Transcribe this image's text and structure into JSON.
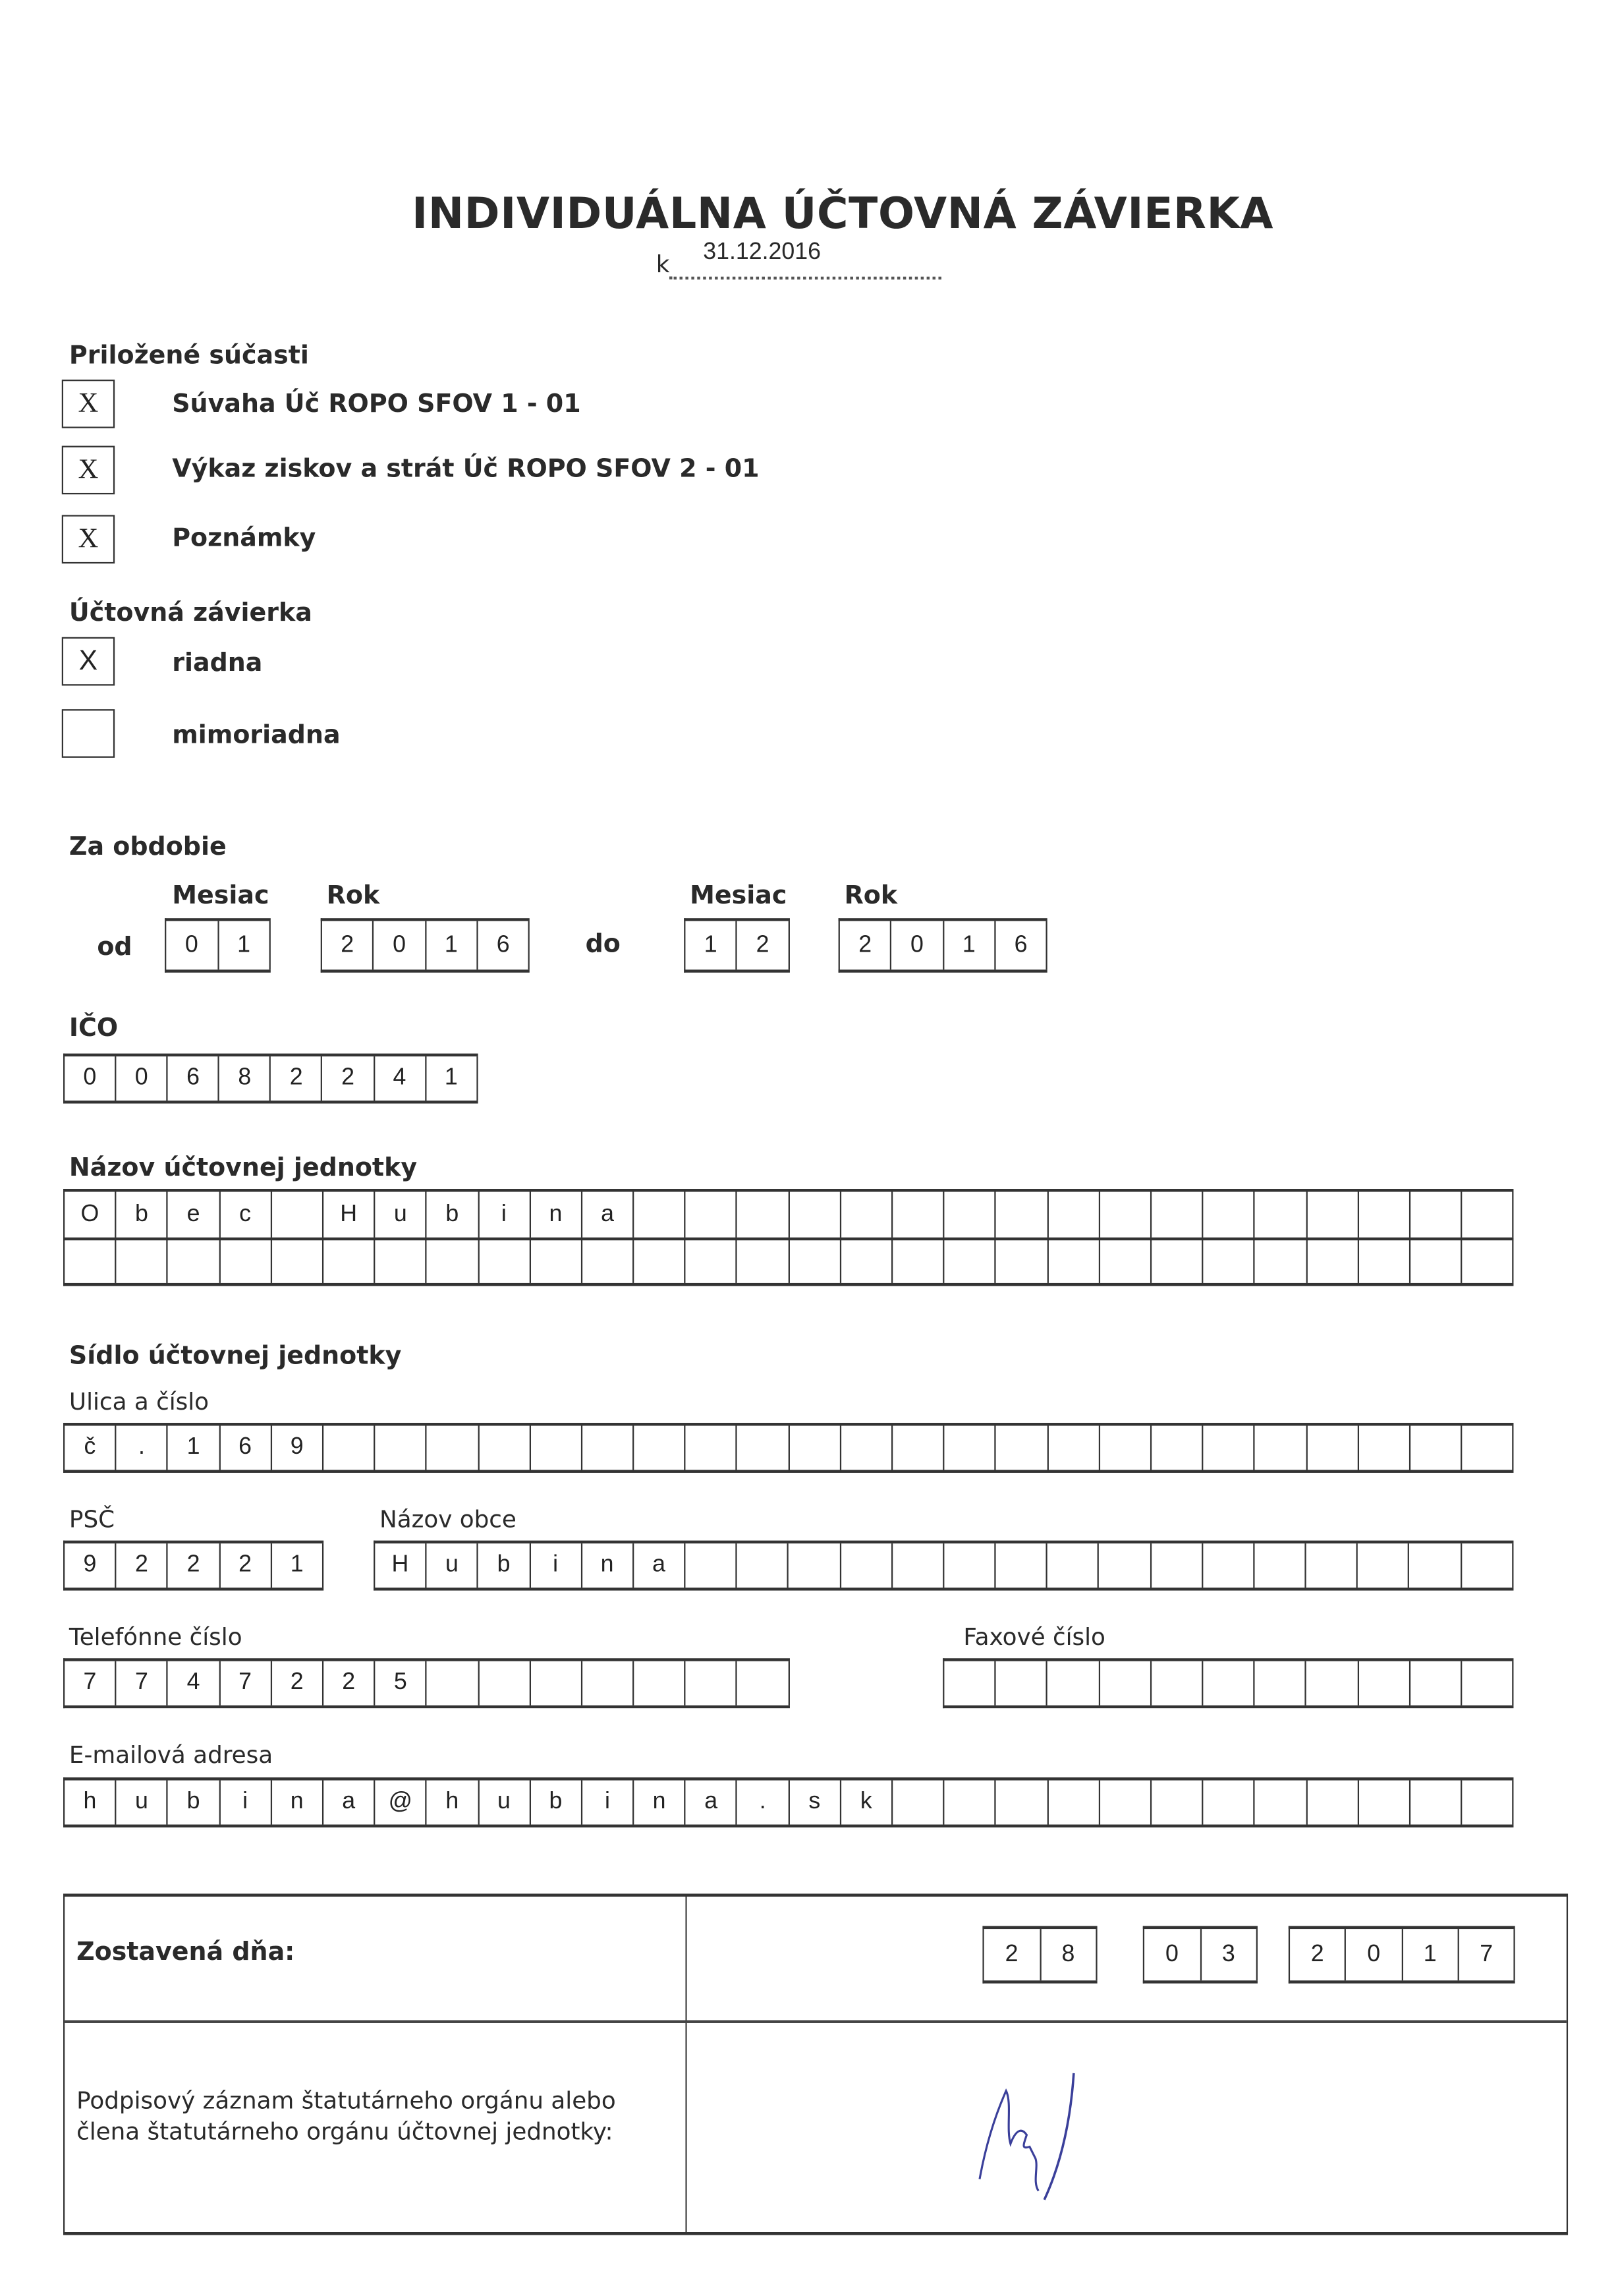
{
  "title": "INDIVIDUÁLNA ÚČTOVNÁ ZÁVIERKA",
  "as_of_prefix": "k",
  "as_of_date": "31.12.2016",
  "attached": {
    "heading": "Priložené súčasti",
    "items": [
      {
        "label": "Súvaha Úč ROPO SFOV 1 - 01",
        "mark": "X"
      },
      {
        "label": "Výkaz ziskov a strát Úč ROPO SFOV 2 - 01",
        "mark": "X"
      },
      {
        "label": "Poznámky",
        "mark": "X"
      }
    ]
  },
  "statement_type": {
    "heading": "Účtovná závierka",
    "items": [
      {
        "label": "riadna",
        "mark": "X"
      },
      {
        "label": "mimoriadna",
        "mark": ""
      }
    ]
  },
  "period": {
    "heading": "Za obdobie",
    "month_label": "Mesiac",
    "year_label": "Rok",
    "from_label": "od",
    "to_label": "do",
    "from_month": [
      "0",
      "1"
    ],
    "from_year": [
      "2",
      "0",
      "1",
      "6"
    ],
    "to_month": [
      "1",
      "2"
    ],
    "to_year": [
      "2",
      "0",
      "1",
      "6"
    ]
  },
  "ico": {
    "label": "IČO",
    "cells": [
      "0",
      "0",
      "6",
      "8",
      "2",
      "2",
      "4",
      "1"
    ]
  },
  "name": {
    "label": "Názov účtovnej jednotky",
    "row1": [
      "O",
      "b",
      "e",
      "c",
      "",
      "H",
      "u",
      "b",
      "i",
      "n",
      "a",
      "",
      "",
      "",
      "",
      "",
      "",
      "",
      "",
      "",
      "",
      "",
      "",
      "",
      "",
      "",
      "",
      ""
    ],
    "row2": [
      "",
      "",
      "",
      "",
      "",
      "",
      "",
      "",
      "",
      "",
      "",
      "",
      "",
      "",
      "",
      "",
      "",
      "",
      "",
      "",
      "",
      "",
      "",
      "",
      "",
      "",
      "",
      ""
    ]
  },
  "address": {
    "heading": "Sídlo účtovnej jednotky",
    "street_label": "Ulica a číslo",
    "street": [
      "č",
      ".",
      "1",
      "6",
      "9",
      "",
      "",
      "",
      "",
      "",
      "",
      "",
      "",
      "",
      "",
      "",
      "",
      "",
      "",
      "",
      "",
      "",
      "",
      "",
      "",
      "",
      "",
      ""
    ],
    "zip_label": "PSČ",
    "zip": [
      "9",
      "2",
      "2",
      "2",
      "1"
    ],
    "city_label": "Názov obce",
    "city": [
      "H",
      "u",
      "b",
      "i",
      "n",
      "a",
      "",
      "",
      "",
      "",
      "",
      "",
      "",
      "",
      "",
      "",
      "",
      "",
      "",
      "",
      "",
      ""
    ],
    "phone_label": "Telefónne číslo",
    "phone": [
      "7",
      "7",
      "4",
      "7",
      "2",
      "2",
      "5",
      "",
      "",
      "",
      "",
      "",
      "",
      ""
    ],
    "fax_label": "Faxové číslo",
    "fax": [
      "",
      "",
      "",
      "",
      "",
      "",
      "",
      "",
      "",
      "",
      ""
    ],
    "email_label": "E-mailová adresa",
    "email": [
      "h",
      "u",
      "b",
      "i",
      "n",
      "a",
      "@",
      "h",
      "u",
      "b",
      "i",
      "n",
      "a",
      ".",
      "s",
      "k",
      "",
      "",
      "",
      "",
      "",
      "",
      "",
      "",
      "",
      "",
      "",
      ""
    ]
  },
  "footer": {
    "compiled_label": "Zostavená dňa:",
    "day": [
      "2",
      "8"
    ],
    "month": [
      "0",
      "3"
    ],
    "year": [
      "2",
      "0",
      "1",
      "7"
    ],
    "signature_label_1": "Podpisový záznam štatutárneho orgánu alebo",
    "signature_label_2": "člena štatutárneho orgánu účtovnej jednotky:",
    "signature_color": "#3a3f9a"
  }
}
